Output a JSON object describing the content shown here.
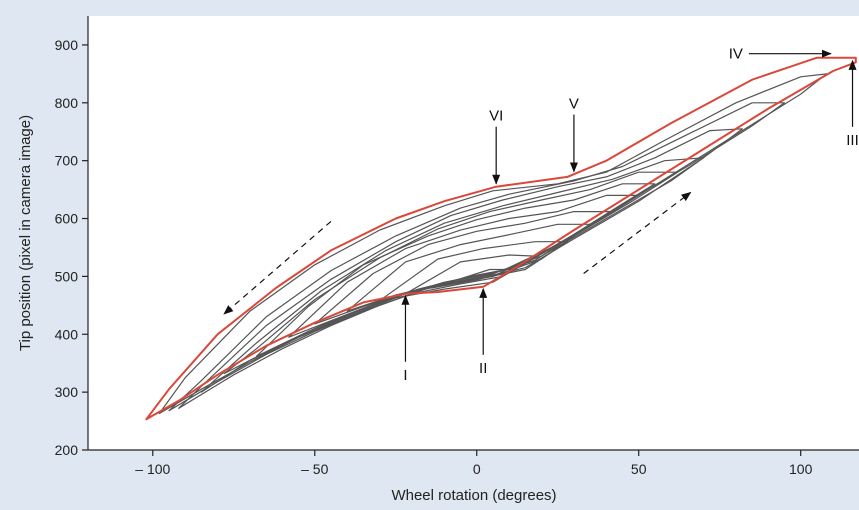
{
  "chart_data": {
    "type": "line",
    "xlabel": "Wheel rotation (degrees)",
    "ylabel": "Tip position (pixel in camera image)",
    "xlim": [
      -120,
      118
    ],
    "ylim": [
      200,
      950
    ],
    "x_ticks": [
      -100,
      -50,
      0,
      50,
      100
    ],
    "x_tick_labels": [
      "– 100",
      "– 50",
      "0",
      "50",
      "100"
    ],
    "y_ticks": [
      200,
      300,
      400,
      500,
      600,
      700,
      800,
      900
    ],
    "y_tick_labels": [
      "200",
      "300",
      "400",
      "500",
      "600",
      "700",
      "800",
      "900"
    ],
    "grid": false,
    "legend": "none",
    "outer_loop_color": "#d9483b",
    "inner_loop_color": "#555555",
    "series": [
      {
        "role": "outer",
        "x": [
          -102,
          -92,
          -80,
          -65,
          -50,
          -35,
          -22,
          -12,
          2,
          12,
          30,
          50,
          70,
          90,
          110,
          117,
          117,
          105,
          85,
          60,
          40,
          28,
          6,
          -10,
          -25,
          -45,
          -62,
          -80,
          -95,
          -102
        ],
        "y": [
          253,
          285,
          330,
          380,
          420,
          455,
          470,
          473,
          482,
          515,
          580,
          650,
          720,
          790,
          855,
          870,
          878,
          878,
          840,
          765,
          700,
          672,
          655,
          630,
          600,
          545,
          480,
          400,
          305,
          253
        ]
      },
      {
        "role": "inner",
        "x": [
          -98,
          -85,
          -70,
          -55,
          -40,
          -25,
          -10,
          5,
          20,
          40,
          60,
          80,
          100,
          108,
          100,
          80,
          58,
          40,
          25,
          5,
          -10,
          -30,
          -50,
          -70,
          -90,
          -98
        ],
        "y": [
          263,
          305,
          352,
          395,
          430,
          463,
          478,
          490,
          540,
          605,
          675,
          745,
          815,
          850,
          845,
          800,
          735,
          680,
          660,
          648,
          622,
          580,
          520,
          440,
          325,
          263
        ]
      },
      {
        "role": "inner",
        "x": [
          -95,
          -80,
          -65,
          -50,
          -35,
          -20,
          -5,
          8,
          25,
          45,
          65,
          85,
          95,
          85,
          65,
          45,
          30,
          10,
          -5,
          -25,
          -45,
          -65,
          -85,
          -95
        ],
        "y": [
          268,
          318,
          365,
          405,
          440,
          470,
          487,
          500,
          555,
          625,
          690,
          760,
          800,
          800,
          745,
          690,
          665,
          642,
          618,
          570,
          510,
          430,
          320,
          268
        ]
      },
      {
        "role": "inner",
        "x": [
          -92,
          -75,
          -60,
          -45,
          -30,
          -15,
          0,
          15,
          30,
          50,
          70,
          82,
          72,
          55,
          40,
          25,
          8,
          -8,
          -25,
          -45,
          -65,
          -85,
          -92
        ],
        "y": [
          272,
          330,
          375,
          415,
          450,
          480,
          495,
          515,
          565,
          630,
          705,
          755,
          752,
          705,
          672,
          655,
          632,
          605,
          560,
          495,
          415,
          310,
          272
        ]
      },
      {
        "role": "inner",
        "x": [
          -85,
          -70,
          -55,
          -40,
          -25,
          -10,
          5,
          20,
          40,
          60,
          70,
          58,
          42,
          25,
          8,
          -10,
          -28,
          -48,
          -68,
          -85
        ],
        "y": [
          300,
          355,
          395,
          432,
          465,
          490,
          505,
          535,
          600,
          665,
          705,
          700,
          668,
          645,
          622,
          592,
          545,
          475,
          385,
          300
        ]
      },
      {
        "role": "inner",
        "x": [
          -78,
          -62,
          -48,
          -32,
          -18,
          -2,
          12,
          30,
          48,
          62,
          50,
          35,
          20,
          4,
          -12,
          -30,
          -50,
          -68,
          -78
        ],
        "y": [
          332,
          378,
          415,
          450,
          478,
          500,
          515,
          570,
          630,
          680,
          680,
          650,
          632,
          612,
          582,
          532,
          460,
          375,
          332
        ]
      },
      {
        "role": "inner",
        "x": [
          -68,
          -52,
          -38,
          -22,
          -8,
          8,
          25,
          42,
          55,
          45,
          30,
          15,
          0,
          -15,
          -35,
          -52,
          -68
        ],
        "y": [
          362,
          405,
          438,
          470,
          492,
          510,
          555,
          615,
          660,
          660,
          632,
          618,
          598,
          570,
          520,
          448,
          362
        ]
      },
      {
        "role": "inner",
        "x": [
          -58,
          -42,
          -28,
          -12,
          2,
          18,
          35,
          50,
          40,
          25,
          10,
          -5,
          -22,
          -40,
          -58
        ],
        "y": [
          395,
          430,
          460,
          485,
          500,
          528,
          590,
          640,
          640,
          612,
          600,
          580,
          548,
          490,
          395
        ]
      },
      {
        "role": "inner",
        "x": [
          -50,
          -35,
          -20,
          -5,
          10,
          25,
          42,
          30,
          15,
          0,
          -15,
          -32,
          -50
        ],
        "y": [
          418,
          448,
          475,
          493,
          508,
          555,
          612,
          612,
          592,
          578,
          555,
          505,
          418
        ]
      },
      {
        "role": "inner",
        "x": [
          -40,
          -25,
          -10,
          5,
          20,
          35,
          25,
          10,
          -5,
          -22,
          -40
        ],
        "y": [
          440,
          468,
          488,
          500,
          530,
          590,
          590,
          572,
          555,
          525,
          440
        ]
      },
      {
        "role": "inner",
        "x": [
          -30,
          -15,
          0,
          15,
          28,
          18,
          2,
          -12,
          -30
        ],
        "y": [
          458,
          482,
          495,
          512,
          560,
          560,
          548,
          530,
          458
        ]
      },
      {
        "role": "inner",
        "x": [
          -22,
          -8,
          5,
          18,
          10,
          -5,
          -22
        ],
        "y": [
          470,
          488,
          500,
          535,
          537,
          525,
          470
        ]
      },
      {
        "role": "inner",
        "x": [
          -14,
          0,
          12,
          4,
          -14
        ],
        "y": [
          480,
          494,
          512,
          512,
          480
        ]
      }
    ],
    "annotations": [
      {
        "label": "I",
        "x": -22,
        "y": 470,
        "dir": "up"
      },
      {
        "label": "II",
        "x": 2,
        "y": 482,
        "dir": "up"
      },
      {
        "label": "III",
        "x": 116,
        "y": 876,
        "dir": "up"
      },
      {
        "label": "IV",
        "x": 105,
        "y": 878,
        "dir": "right"
      },
      {
        "label": "V",
        "x": 30,
        "y": 676,
        "dir": "down"
      },
      {
        "label": "VI",
        "x": 6,
        "y": 655,
        "dir": "down"
      }
    ],
    "direction_arrows": [
      {
        "from": [
          -45,
          595
        ],
        "to": [
          -78,
          435
        ]
      },
      {
        "from": [
          33,
          505
        ],
        "to": [
          66,
          645
        ]
      }
    ]
  }
}
